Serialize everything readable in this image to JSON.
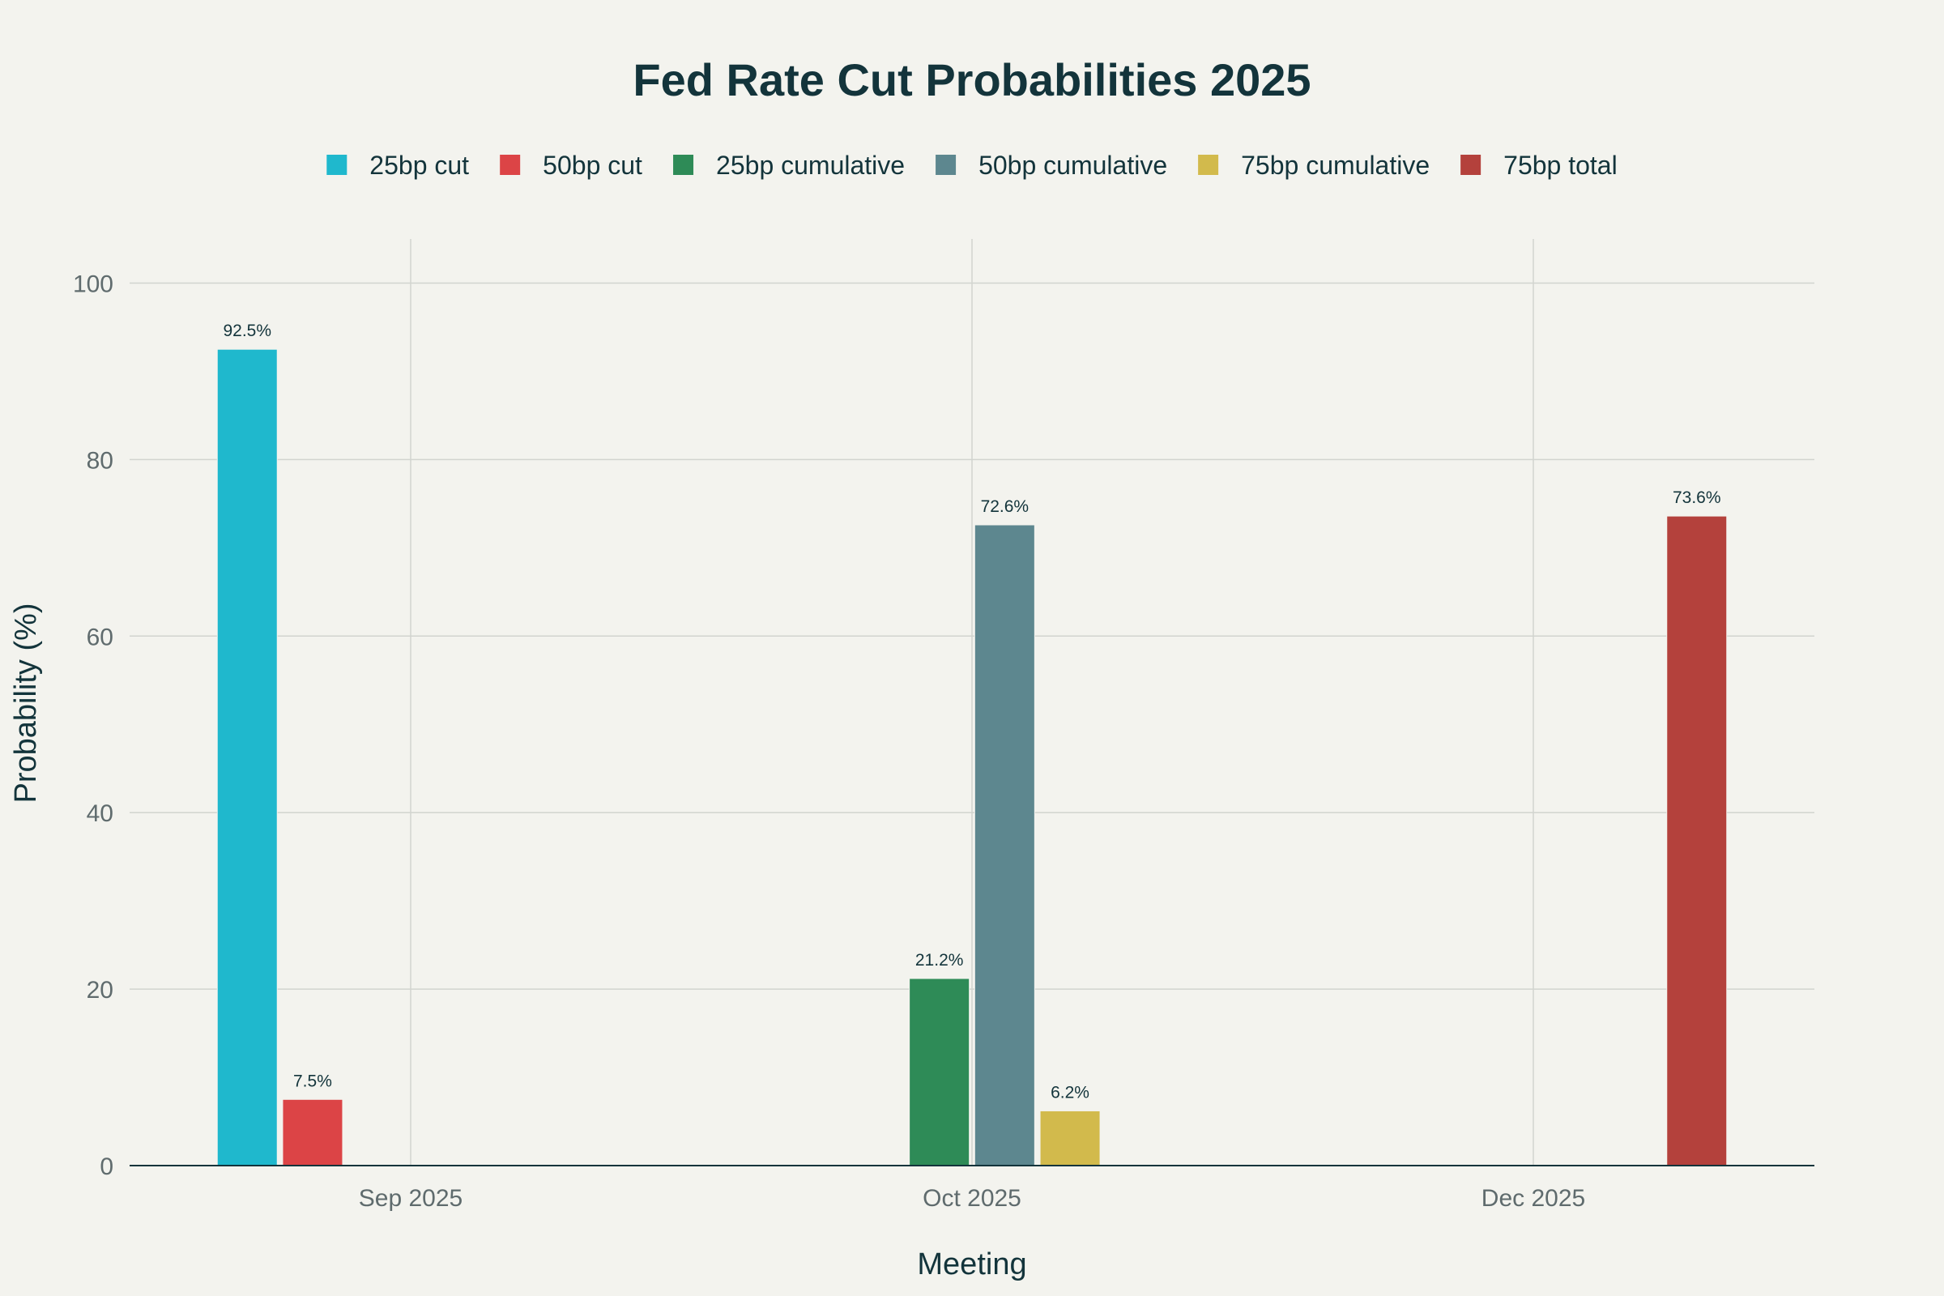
{
  "chart_data": {
    "type": "bar",
    "title": "Fed Rate Cut Probabilities 2025",
    "xlabel": "Meeting",
    "ylabel": "Probability (%)",
    "categories": [
      "Sep 2025",
      "Oct 2025",
      "Dec 2025"
    ],
    "ylim": [
      0,
      105
    ],
    "yticks": [
      0,
      20,
      40,
      60,
      80,
      100
    ],
    "grid": true,
    "legend_position": "top",
    "series": [
      {
        "name": "25bp cut",
        "color": "#1fb8cd",
        "values": [
          92.5,
          null,
          null
        ],
        "labels": [
          "92.5%",
          "",
          ""
        ]
      },
      {
        "name": "50bp cut",
        "color": "#dc4446",
        "values": [
          7.5,
          null,
          null
        ],
        "labels": [
          "7.5%",
          "",
          ""
        ]
      },
      {
        "name": "25bp cumulative",
        "color": "#2e8b57",
        "values": [
          null,
          21.2,
          null
        ],
        "labels": [
          "",
          "21.2%",
          ""
        ]
      },
      {
        "name": "50bp cumulative",
        "color": "#5d878f",
        "values": [
          null,
          72.6,
          null
        ],
        "labels": [
          "",
          "72.6%",
          ""
        ]
      },
      {
        "name": "75bp cumulative",
        "color": "#d2ba4c",
        "values": [
          null,
          6.2,
          null
        ],
        "labels": [
          "",
          "6.2%",
          ""
        ]
      },
      {
        "name": "75bp total",
        "color": "#b4413c",
        "values": [
          null,
          null,
          73.6
        ],
        "labels": [
          "",
          "",
          "73.6%"
        ]
      }
    ]
  }
}
